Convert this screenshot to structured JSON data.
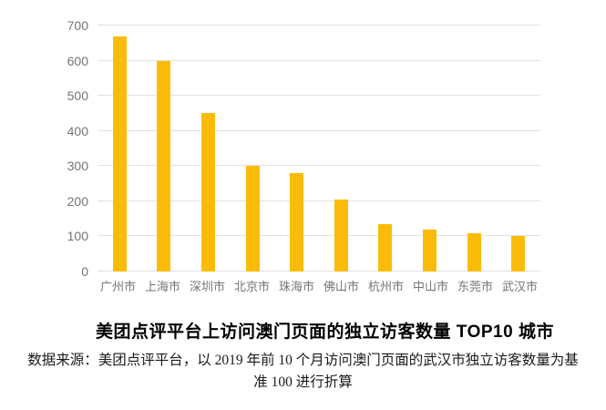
{
  "chart_data": {
    "type": "bar",
    "title": "美团点评平台上访问澳门页面的独立访客数量 TOP10 城市",
    "categories": [
      "广州市",
      "上海市",
      "深圳市",
      "北京市",
      "珠海市",
      "佛山市",
      "杭州市",
      "中山市",
      "东莞市",
      "武汉市"
    ],
    "values": [
      670,
      600,
      450,
      300,
      280,
      205,
      135,
      120,
      110,
      100
    ],
    "xlabel": "",
    "ylabel": "",
    "ylim": [
      0,
      700
    ],
    "yticks": [
      0,
      100,
      200,
      300,
      400,
      500,
      600,
      700
    ],
    "grid": true,
    "legend_position": "none",
    "bar_color": "#FBBC09",
    "gridline_color": "#E2E2E2",
    "axis_label_color": "#757575"
  },
  "footnote": {
    "lines": [
      "数据来源：美团点评平台，以 2019 年前 10 个月访问澳门页面的武汉市独立访客数量为基",
      "准 100 进行折算"
    ]
  }
}
